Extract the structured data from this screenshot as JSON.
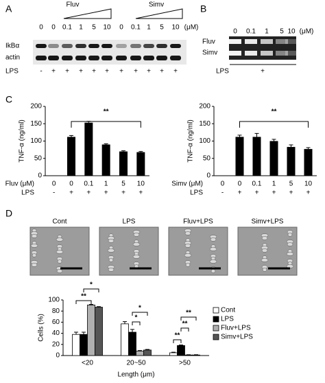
{
  "figure": {
    "panel_labels": [
      "A",
      "B",
      "C",
      "D"
    ],
    "blot_a": {
      "groups": [
        "Fluv",
        "Simv"
      ],
      "lanes": [
        "0",
        "0",
        "0.1",
        "1",
        "5",
        "10",
        "0",
        "0.1",
        "1",
        "5",
        "10"
      ],
      "unit": "(μM)",
      "rows": [
        "IkBα",
        "actin"
      ],
      "lps_label": "LPS",
      "lps": [
        "-",
        "+",
        "+",
        "+",
        "+",
        "+",
        "+",
        "+",
        "+",
        "+",
        "+"
      ]
    },
    "blot_b": {
      "lanes": [
        "0",
        "0.1",
        "1",
        "5",
        "10"
      ],
      "unit": "(μM)",
      "rows": [
        "Fluv",
        "Simv"
      ],
      "lps_label": "LPS",
      "lps": "+"
    },
    "micrographs": [
      "Cont",
      "LPS",
      "Fluv+LPS",
      "Simv+LPS"
    ]
  },
  "chart_data": [
    {
      "type": "bar",
      "y_label": "TNF-α (ng/ml)",
      "categories": [
        "0",
        "0",
        "0.1",
        "1",
        "5",
        "10"
      ],
      "x_label": "Fluv (μM)",
      "lps_label": "LPS",
      "lps": [
        "-",
        "+",
        "+",
        "+",
        "+",
        "+"
      ],
      "values": [
        0,
        112,
        153,
        90,
        70,
        68
      ],
      "errors": [
        0,
        4,
        4,
        2,
        2,
        2
      ],
      "color": "#000000",
      "ylim": [
        0,
        200
      ],
      "yticks": [
        0,
        50,
        100,
        150,
        200
      ],
      "annotation": "**"
    },
    {
      "type": "bar",
      "y_label": "TNF-α (ng/ml)",
      "categories": [
        "0",
        "0",
        "0.1",
        "1",
        "5",
        "10"
      ],
      "x_label": "Simv (μM)",
      "lps_label": "LPS",
      "lps": [
        "-",
        "+",
        "+",
        "+",
        "+",
        "+"
      ],
      "values": [
        0,
        112,
        112,
        100,
        83,
        77
      ],
      "errors": [
        0,
        5,
        10,
        5,
        6,
        4
      ],
      "color": "#000000",
      "ylim": [
        0,
        200
      ],
      "yticks": [
        0,
        50,
        100,
        150,
        200
      ],
      "annotation": "**"
    },
    {
      "type": "grouped_bar",
      "y_label": "Cells (%)",
      "x_label": "Length (μm)",
      "categories": [
        "<20",
        "20~50",
        ">50"
      ],
      "series": [
        {
          "name": "Cont",
          "color": "#ffffff",
          "values": [
            38,
            57,
            5
          ],
          "errors": [
            4,
            4,
            1
          ]
        },
        {
          "name": "LPS",
          "color": "#000000",
          "values": [
            38,
            42,
            18
          ],
          "errors": [
            4,
            5,
            1
          ]
        },
        {
          "name": "Fluv+LPS",
          "color": "#b0b0b0",
          "values": [
            91,
            8,
            1
          ],
          "errors": [
            1,
            1,
            0.5
          ]
        },
        {
          "name": "Simv+LPS",
          "color": "#555555",
          "values": [
            87,
            10,
            1
          ],
          "errors": [
            1,
            1,
            0.5
          ]
        }
      ],
      "ylim": [
        0,
        100
      ],
      "yticks": [
        0,
        20,
        40,
        60,
        80,
        100
      ],
      "annotations": [
        "**",
        "*",
        "*",
        "*",
        "**",
        "**",
        "**"
      ]
    }
  ]
}
